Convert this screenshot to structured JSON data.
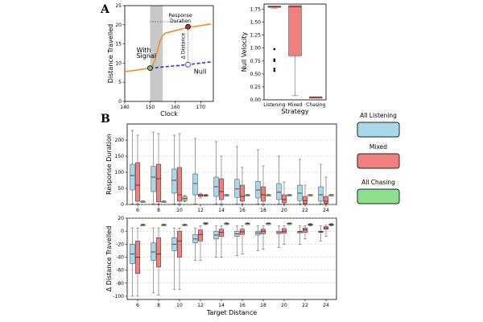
{
  "panels": {
    "a": "A",
    "b": "B"
  },
  "chart_data": [
    {
      "type": "line",
      "title": "",
      "xlabel": "Clock",
      "ylabel": "Distance Travelled",
      "xlim": [
        140,
        175
      ],
      "ylim": [
        0,
        25
      ],
      "xticks": [
        "140",
        "150",
        "160",
        "170"
      ],
      "yticks": [
        "0",
        "5",
        "10",
        "15",
        "20",
        "25"
      ],
      "series": [
        {
          "name": "With Signal",
          "color": "#f28c28",
          "style": "solid",
          "x": [
            140,
            145,
            150,
            151,
            152,
            153,
            154,
            155,
            156,
            160,
            165,
            170,
            174
          ],
          "y": [
            7.8,
            8.2,
            8.7,
            9.3,
            11.0,
            13.5,
            15.8,
            17.2,
            17.8,
            18.5,
            19.3,
            19.8,
            20.2
          ]
        },
        {
          "name": "Null",
          "color": "#2b2bd6",
          "style": "dashed",
          "x": [
            150,
            160,
            165,
            170,
            174
          ],
          "y": [
            8.7,
            9.3,
            9.6,
            10.0,
            10.3
          ]
        }
      ],
      "labels": {
        "signal": [
          "With",
          "Signal"
        ],
        "null": "Null",
        "response": [
          "Response",
          "Duration"
        ],
        "delta": "Δ Distance"
      },
      "markers": [
        {
          "x": 150,
          "y": 8.7,
          "color": "#7ac36a"
        },
        {
          "x": 165,
          "y": 19.5,
          "color": "#d62728"
        },
        {
          "x": 165,
          "y": 9.6,
          "color": "#ffffff"
        }
      ],
      "shade": {
        "from": 150,
        "to": 155
      }
    },
    {
      "type": "box",
      "xlabel": "Strategy",
      "ylabel": "Null Velocity",
      "ylim": [
        0,
        1.85
      ],
      "yticks": [
        "0.00",
        "0.25",
        "0.50",
        "0.75",
        "1.00",
        "1.25",
        "1.50",
        "1.75"
      ],
      "categories": [
        "Listening",
        "Mixed",
        "Chasing"
      ],
      "boxes": [
        {
          "category": "Listening",
          "color": "#e06c6c",
          "whislo": 1.77,
          "q1": 1.79,
          "med": 1.8,
          "q3": 1.81,
          "whishi": 1.82,
          "fliers": [
            0.98,
            0.78,
            0.75,
            0.6,
            0.56
          ]
        },
        {
          "category": "Mixed",
          "color": "#f08080",
          "whislo": 0.08,
          "q1": 0.85,
          "med": 1.8,
          "q3": 1.82,
          "whishi": 1.82,
          "fliers": []
        },
        {
          "category": "Chasing",
          "color": "#e06c6c",
          "whislo": 0.04,
          "q1": 0.045,
          "med": 0.05,
          "q3": 0.055,
          "whishi": 0.06,
          "fliers": []
        }
      ]
    },
    {
      "type": "box",
      "xlabel": "",
      "ylabel": "Response Duration",
      "ylim": [
        0,
        250
      ],
      "yticks": [
        "0",
        "50",
        "100",
        "150",
        "200"
      ],
      "categories": [
        "6",
        "8",
        "10",
        "12",
        "14",
        "16",
        "18",
        "20",
        "22",
        "24"
      ],
      "series": [
        {
          "name": "All Listening",
          "color": "#a9d8ea",
          "boxes": [
            {
              "whislo": 2,
              "q1": 45,
              "med": 90,
              "q3": 125,
              "whishi": 230
            },
            {
              "whislo": 2,
              "q1": 40,
              "med": 85,
              "q3": 118,
              "whishi": 225
            },
            {
              "whislo": 2,
              "q1": 35,
              "med": 75,
              "q3": 110,
              "whishi": 215
            },
            {
              "whislo": 2,
              "q1": 30,
              "med": 65,
              "q3": 95,
              "whishi": 205
            },
            {
              "whislo": 2,
              "q1": 25,
              "med": 55,
              "q3": 85,
              "whishi": 195
            },
            {
              "whislo": 2,
              "q1": 22,
              "med": 48,
              "q3": 78,
              "whishi": 180
            },
            {
              "whislo": 2,
              "q1": 20,
              "med": 45,
              "q3": 72,
              "whishi": 170
            },
            {
              "whislo": 2,
              "q1": 15,
              "med": 38,
              "q3": 65,
              "whishi": 150
            },
            {
              "whislo": 2,
              "q1": 12,
              "med": 35,
              "q3": 60,
              "whishi": 140
            },
            {
              "whislo": 2,
              "q1": 10,
              "med": 30,
              "q3": 55,
              "whishi": 125
            }
          ]
        },
        {
          "name": "Mixed",
          "color": "#f08080",
          "boxes": [
            {
              "whislo": 2,
              "q1": 10,
              "med": 60,
              "q3": 130,
              "whishi": 215
            },
            {
              "whislo": 2,
              "q1": 8,
              "med": 80,
              "q3": 125,
              "whishi": 220
            },
            {
              "whislo": 2,
              "q1": 10,
              "med": 30,
              "q3": 115,
              "whishi": 220
            },
            {
              "whislo": 20,
              "q1": 25,
              "med": 28,
              "q3": 32,
              "whishi": 35
            },
            {
              "whislo": 2,
              "q1": 15,
              "med": 40,
              "q3": 80,
              "whishi": 150
            },
            {
              "whislo": 2,
              "q1": 10,
              "med": 25,
              "q3": 60,
              "whishi": 115
            },
            {
              "whislo": 2,
              "q1": 10,
              "med": 30,
              "q3": 55,
              "whishi": 120
            },
            {
              "whislo": 2,
              "q1": 5,
              "med": 15,
              "q3": 30,
              "whishi": 70
            },
            {
              "whislo": 2,
              "q1": 3,
              "med": 12,
              "q3": 25,
              "whishi": 60
            },
            {
              "whislo": 2,
              "q1": 3,
              "med": 10,
              "q3": 25,
              "whishi": 85
            }
          ]
        },
        {
          "name": "All Chasing",
          "color": "#8ee08e",
          "boxes": [
            {
              "whislo": 9,
              "q1": 9,
              "med": 10,
              "q3": 10,
              "whishi": 11
            },
            {
              "whislo": 9,
              "q1": 9,
              "med": 10,
              "q3": 10,
              "whishi": 11
            },
            {
              "whislo": 8,
              "q1": 12,
              "med": 18,
              "q3": 25,
              "whishi": 28
            },
            {
              "whislo": 25,
              "q1": 26,
              "med": 28,
              "q3": 30,
              "whishi": 31
            },
            {
              "whislo": 29,
              "q1": 29,
              "med": 30,
              "q3": 30,
              "whishi": 31
            },
            {
              "whislo": 29,
              "q1": 29,
              "med": 30,
              "q3": 30,
              "whishi": 31
            },
            {
              "whislo": 29,
              "q1": 29,
              "med": 30,
              "q3": 30,
              "whishi": 31
            },
            {
              "whislo": 29,
              "q1": 29,
              "med": 30,
              "q3": 30,
              "whishi": 31
            },
            {
              "whislo": 29,
              "q1": 29,
              "med": 30,
              "q3": 30,
              "whishi": 31
            },
            {
              "whislo": 29,
              "q1": 29,
              "med": 30,
              "q3": 30,
              "whishi": 31
            }
          ]
        }
      ]
    },
    {
      "type": "box",
      "xlabel": "Target Distance",
      "ylabel": "Δ Distance Travelled",
      "ylim": [
        -105,
        20
      ],
      "yticks": [
        "-100",
        "-80",
        "-60",
        "-40",
        "-20",
        "0",
        "20"
      ],
      "categories": [
        "6",
        "8",
        "10",
        "12",
        "14",
        "16",
        "18",
        "20",
        "22",
        "24"
      ],
      "series": [
        {
          "name": "All Listening",
          "color": "#a9d8ea",
          "boxes": [
            {
              "whislo": -100,
              "q1": -50,
              "med": -35,
              "q3": -20,
              "whishi": 5
            },
            {
              "whislo": -95,
              "q1": -45,
              "med": -32,
              "q3": -18,
              "whishi": 5
            },
            {
              "whislo": -90,
              "q1": -30,
              "med": -20,
              "q3": -10,
              "whishi": 5
            },
            {
              "whislo": -45,
              "q1": -18,
              "med": -12,
              "q3": -5,
              "whishi": 5
            },
            {
              "whislo": -40,
              "q1": -12,
              "med": -6,
              "q3": 0,
              "whishi": 8
            },
            {
              "whislo": -38,
              "q1": -8,
              "med": -4,
              "q3": 0,
              "whishi": 8
            },
            {
              "whislo": -30,
              "q1": -6,
              "med": -3,
              "q3": 0,
              "whishi": 8
            },
            {
              "whislo": -25,
              "q1": -4,
              "med": -2,
              "q3": 0,
              "whishi": 8
            },
            {
              "whislo": -20,
              "q1": -3,
              "med": -1,
              "q3": 0,
              "whishi": 8
            },
            {
              "whislo": -15,
              "q1": -2,
              "med": -1,
              "q3": 0,
              "whishi": 8
            }
          ]
        },
        {
          "name": "Mixed",
          "color": "#f08080",
          "boxes": [
            {
              "whislo": -100,
              "q1": -65,
              "med": -40,
              "q3": -15,
              "whishi": 5
            },
            {
              "whislo": -98,
              "q1": -55,
              "med": -35,
              "q3": -10,
              "whishi": 5
            },
            {
              "whislo": -90,
              "q1": -40,
              "med": -15,
              "q3": 0,
              "whishi": 5
            },
            {
              "whislo": -45,
              "q1": -15,
              "med": -5,
              "q3": 2,
              "whishi": 8
            },
            {
              "whislo": -40,
              "q1": -8,
              "med": -2,
              "q3": 3,
              "whishi": 8
            },
            {
              "whislo": -35,
              "q1": -5,
              "med": -1,
              "q3": 3,
              "whishi": 8
            },
            {
              "whislo": -28,
              "q1": -4,
              "med": 0,
              "q3": 3,
              "whishi": 8
            },
            {
              "whislo": -20,
              "q1": -3,
              "med": 0,
              "q3": 4,
              "whishi": 8
            },
            {
              "whislo": -12,
              "q1": -2,
              "med": 2,
              "q3": 5,
              "whishi": 8
            },
            {
              "whislo": -8,
              "q1": 3,
              "med": 5,
              "q3": 7,
              "whishi": 9
            }
          ]
        },
        {
          "name": "All Chasing",
          "color": "#8ee08e",
          "boxes": [
            {
              "whislo": 9,
              "q1": 9,
              "med": 10,
              "q3": 10,
              "whishi": 11
            },
            {
              "whislo": 9,
              "q1": 9,
              "med": 10,
              "q3": 10,
              "whishi": 11
            },
            {
              "whislo": 9,
              "q1": 9,
              "med": 10,
              "q3": 10,
              "whishi": 11
            },
            {
              "whislo": 10,
              "q1": 11,
              "med": 12,
              "q3": 13,
              "whishi": 13
            },
            {
              "whislo": 10,
              "q1": 11,
              "med": 12,
              "q3": 12,
              "whishi": 13
            },
            {
              "whislo": 10,
              "q1": 11,
              "med": 12,
              "q3": 12,
              "whishi": 13
            },
            {
              "whislo": 10,
              "q1": 11,
              "med": 12,
              "q3": 12,
              "whishi": 13
            },
            {
              "whislo": 10,
              "q1": 11,
              "med": 12,
              "q3": 12,
              "whishi": 13
            },
            {
              "whislo": 8,
              "q1": 9,
              "med": 10,
              "q3": 11,
              "whishi": 12
            },
            {
              "whislo": 8,
              "q1": 9,
              "med": 10,
              "q3": 11,
              "whishi": 12
            }
          ]
        }
      ]
    }
  ],
  "legend": [
    {
      "label": "All Listening",
      "color": "#a9d8ea"
    },
    {
      "label": "Mixed",
      "color": "#f08080"
    },
    {
      "label": "All Chasing",
      "color": "#8ee08e"
    }
  ]
}
